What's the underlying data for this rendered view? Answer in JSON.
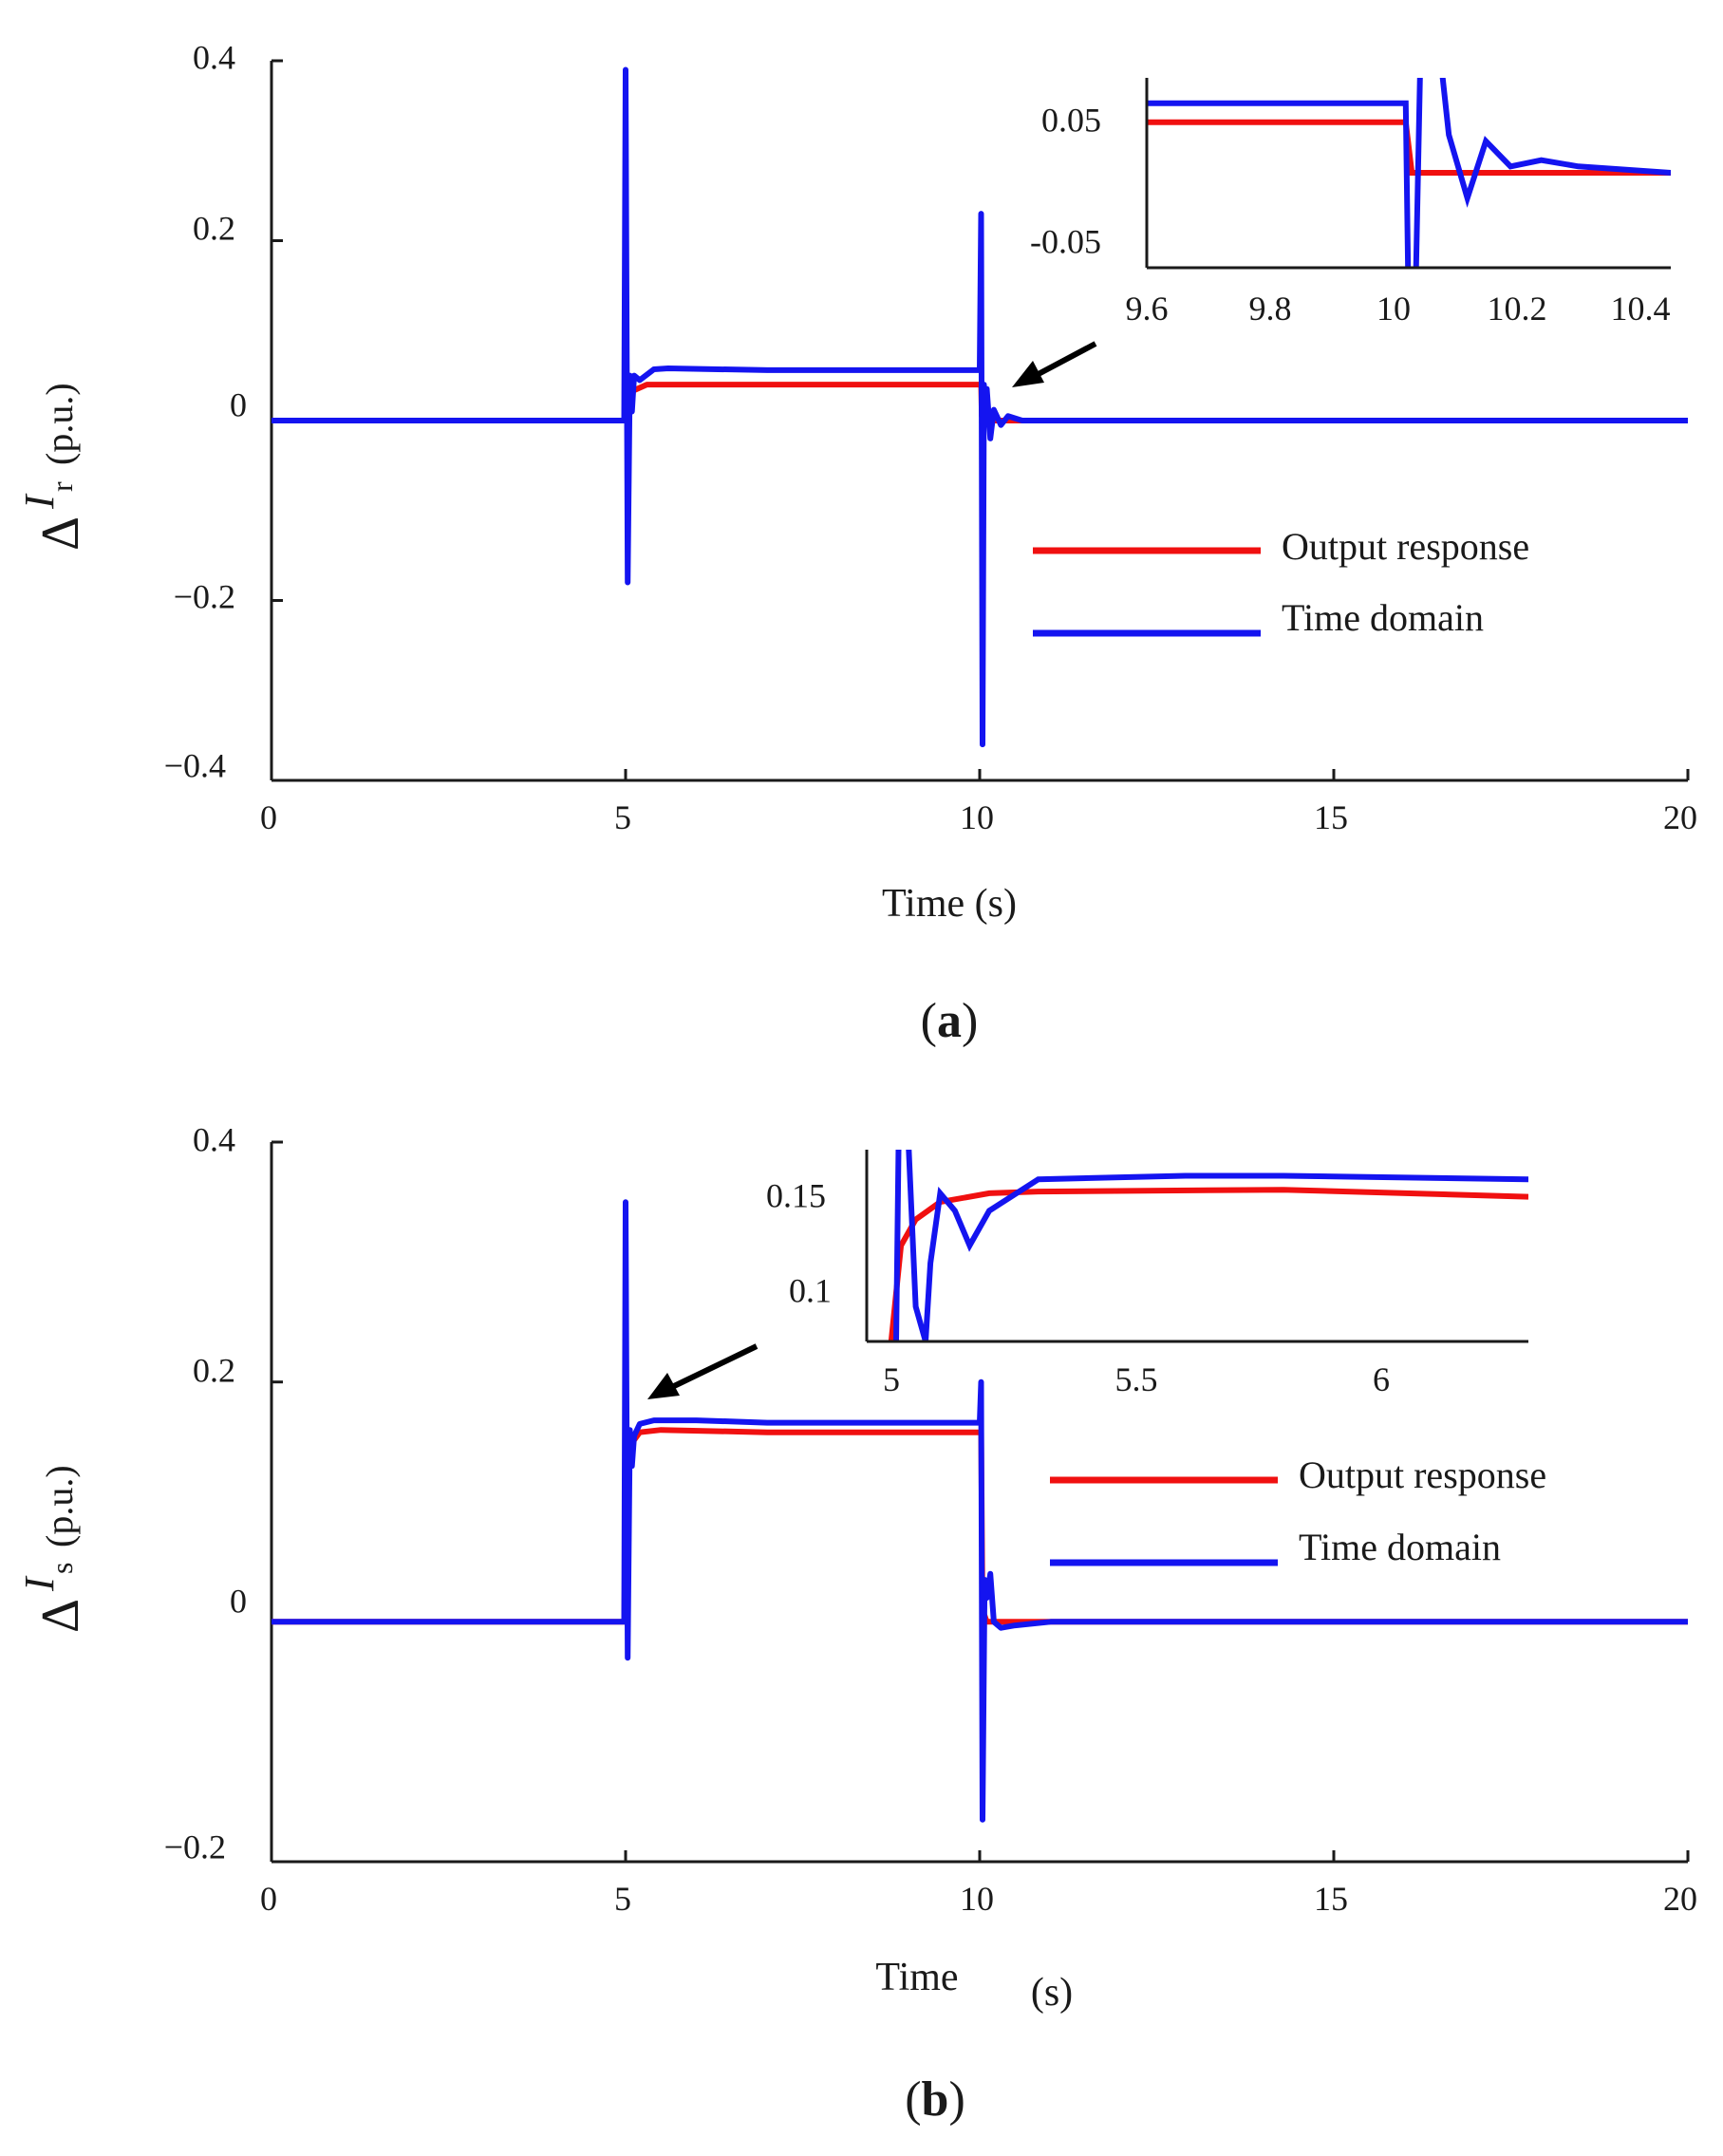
{
  "colors": {
    "output": "#f01010",
    "time": "#1414f0",
    "axis": "#1a1a1a",
    "arrow": "#000000"
  },
  "chart_data": [
    {
      "type": "line",
      "panel": "(a)",
      "panel_prefix": "(",
      "panel_letter": "a",
      "panel_suffix": ")",
      "xlabel": "Time (s)",
      "ylabel": {
        "symbol": "Δ",
        "var": "I",
        "sub": "r",
        "unit": "(p.u.)"
      },
      "xlim": [
        0,
        20
      ],
      "ylim": [
        -0.4,
        0.4
      ],
      "xticks": [
        0,
        5,
        10,
        15,
        20
      ],
      "xtick_labels": [
        "0",
        "5",
        "10",
        "15",
        "20"
      ],
      "yticks": [
        -0.4,
        -0.2,
        0,
        0.2,
        0.4
      ],
      "ytick_labels": [
        "−0.4",
        "−0.2",
        "0",
        "0.2",
        "0.4"
      ],
      "legend": [
        "Output response",
        "Time domain"
      ],
      "legend_location": "center-right",
      "series": [
        {
          "name": "Output response",
          "color_key": "output",
          "points": [
            [
              0,
              0
            ],
            [
              5.0,
              0
            ],
            [
              5.03,
              0.03
            ],
            [
              5.1,
              0.033
            ],
            [
              5.3,
              0.04
            ],
            [
              6,
              0.04
            ],
            [
              8,
              0.04
            ],
            [
              10.0,
              0.04
            ],
            [
              10.02,
              0.04
            ],
            [
              10.03,
              0.005
            ],
            [
              10.1,
              0
            ],
            [
              10.3,
              0
            ],
            [
              20,
              0
            ]
          ]
        },
        {
          "name": "Time domain",
          "color_key": "time",
          "points": [
            [
              0,
              0
            ],
            [
              4.98,
              0
            ],
            [
              5.0,
              0.39
            ],
            [
              5.03,
              -0.18
            ],
            [
              5.06,
              0.05
            ],
            [
              5.09,
              0.01
            ],
            [
              5.12,
              0.05
            ],
            [
              5.2,
              0.045
            ],
            [
              5.4,
              0.057
            ],
            [
              5.6,
              0.058
            ],
            [
              7,
              0.056
            ],
            [
              9,
              0.056
            ],
            [
              10.0,
              0.056
            ],
            [
              10.02,
              0.23
            ],
            [
              10.04,
              -0.36
            ],
            [
              10.06,
              0.04
            ],
            [
              10.08,
              0.01
            ],
            [
              10.1,
              0.035
            ],
            [
              10.15,
              -0.02
            ],
            [
              10.2,
              0.012
            ],
            [
              10.3,
              -0.005
            ],
            [
              10.4,
              0.005
            ],
            [
              10.6,
              0
            ],
            [
              11.5,
              0
            ],
            [
              20,
              0
            ]
          ]
        }
      ],
      "annotations": [
        {
          "type": "arrow",
          "points_to": [
            10.45,
            0.04
          ],
          "from": [
            11.6,
            0.08
          ]
        }
      ],
      "inset": {
        "xlim": [
          9.6,
          10.45
        ],
        "ylim": [
          -0.075,
          0.075
        ],
        "xticks": [
          9.6,
          9.8,
          10,
          10.2,
          10.4
        ],
        "xtick_labels": [
          "9.6",
          "9.8",
          "10",
          "10.2",
          "10.4"
        ],
        "yticks": [
          -0.05,
          0.05
        ],
        "ytick_labels": [
          "-0.05",
          "0.05"
        ],
        "series": [
          {
            "name": "Output response",
            "color_key": "output",
            "points": [
              [
                9.6,
                0.04
              ],
              [
                10.0,
                0.04
              ],
              [
                10.02,
                0.04
              ],
              [
                10.03,
                0
              ],
              [
                10.45,
                0
              ]
            ]
          },
          {
            "name": "Time domain",
            "color_key": "time",
            "points": [
              [
                9.6,
                0.055
              ],
              [
                10.02,
                0.055
              ],
              [
                10.025,
                -0.12
              ],
              [
                10.035,
                -0.12
              ],
              [
                10.045,
                0.12
              ],
              [
                10.07,
                0.12
              ],
              [
                10.09,
                0.03
              ],
              [
                10.12,
                -0.02
              ],
              [
                10.15,
                0.025
              ],
              [
                10.19,
                0.005
              ],
              [
                10.24,
                0.01
              ],
              [
                10.3,
                0.005
              ],
              [
                10.45,
                0
              ]
            ]
          }
        ]
      }
    },
    {
      "type": "line",
      "panel": "(b)",
      "panel_prefix": "(",
      "panel_letter": "b",
      "panel_suffix": ")",
      "xlabel": "Time",
      "xlabel_unit": "(s)",
      "ylabel": {
        "symbol": "Δ",
        "var": "I",
        "sub": "s",
        "unit": "(p.u.)"
      },
      "xlim": [
        0,
        20
      ],
      "ylim": [
        -0.2,
        0.4
      ],
      "xticks": [
        0,
        5,
        10,
        15,
        20
      ],
      "xtick_labels": [
        "0",
        "5",
        "10",
        "15",
        "20"
      ],
      "yticks": [
        -0.2,
        0,
        0.2,
        0.4
      ],
      "ytick_labels": [
        "−0.2",
        "0",
        "0.2",
        "0.4"
      ],
      "legend": [
        "Output response",
        "Time domain"
      ],
      "legend_location": "center-right",
      "series": [
        {
          "name": "Output response",
          "color_key": "output",
          "points": [
            [
              0,
              0
            ],
            [
              4.98,
              0
            ],
            [
              5.0,
              0.08
            ],
            [
              5.05,
              0.14
            ],
            [
              5.1,
              0.15
            ],
            [
              5.2,
              0.158
            ],
            [
              5.5,
              0.16
            ],
            [
              7,
              0.158
            ],
            [
              9,
              0.158
            ],
            [
              10.0,
              0.158
            ],
            [
              10.02,
              0.158
            ],
            [
              10.04,
              0.01
            ],
            [
              10.1,
              0
            ],
            [
              20,
              0
            ]
          ]
        },
        {
          "name": "Time domain",
          "color_key": "time",
          "points": [
            [
              0,
              0
            ],
            [
              4.98,
              0
            ],
            [
              5.0,
              0.35
            ],
            [
              5.03,
              -0.03
            ],
            [
              5.06,
              0.16
            ],
            [
              5.09,
              0.13
            ],
            [
              5.12,
              0.155
            ],
            [
              5.2,
              0.165
            ],
            [
              5.4,
              0.168
            ],
            [
              6,
              0.168
            ],
            [
              7,
              0.166
            ],
            [
              9,
              0.166
            ],
            [
              10.0,
              0.166
            ],
            [
              10.02,
              0.2
            ],
            [
              10.04,
              -0.165
            ],
            [
              10.07,
              0.035
            ],
            [
              10.1,
              0.02
            ],
            [
              10.15,
              0.04
            ],
            [
              10.2,
              0.0
            ],
            [
              10.3,
              -0.005
            ],
            [
              10.5,
              -0.003
            ],
            [
              11,
              0
            ],
            [
              20,
              0
            ]
          ]
        }
      ],
      "annotations": [
        {
          "type": "arrow",
          "points_to": [
            5.35,
            0.185
          ],
          "from": [
            6.9,
            0.225
          ]
        }
      ],
      "inset": {
        "xlim": [
          4.95,
          6.3
        ],
        "ylim": [
          0.075,
          0.185
        ],
        "xticks": [
          5,
          5.5,
          6
        ],
        "xtick_labels": [
          "5",
          "5.5",
          "6"
        ],
        "yticks": [
          0.1,
          0.15
        ],
        "ytick_labels": [
          "0.1",
          "0.15"
        ],
        "series": [
          {
            "name": "Output response",
            "color_key": "output",
            "points": [
              [
                5.0,
                0.075
              ],
              [
                5.02,
                0.13
              ],
              [
                5.05,
                0.145
              ],
              [
                5.1,
                0.155
              ],
              [
                5.2,
                0.16
              ],
              [
                5.3,
                0.161
              ],
              [
                5.8,
                0.162
              ],
              [
                6.3,
                0.158
              ]
            ]
          },
          {
            "name": "Time domain",
            "color_key": "time",
            "points": [
              [
                5.01,
                0.075
              ],
              [
                5.015,
                0.19
              ],
              [
                5.035,
                0.19
              ],
              [
                5.05,
                0.095
              ],
              [
                5.07,
                0.075
              ],
              [
                5.08,
                0.12
              ],
              [
                5.1,
                0.16
              ],
              [
                5.13,
                0.15
              ],
              [
                5.16,
                0.13
              ],
              [
                5.2,
                0.15
              ],
              [
                5.3,
                0.168
              ],
              [
                5.6,
                0.17
              ],
              [
                5.8,
                0.17
              ],
              [
                6.3,
                0.168
              ]
            ]
          }
        ]
      }
    }
  ]
}
